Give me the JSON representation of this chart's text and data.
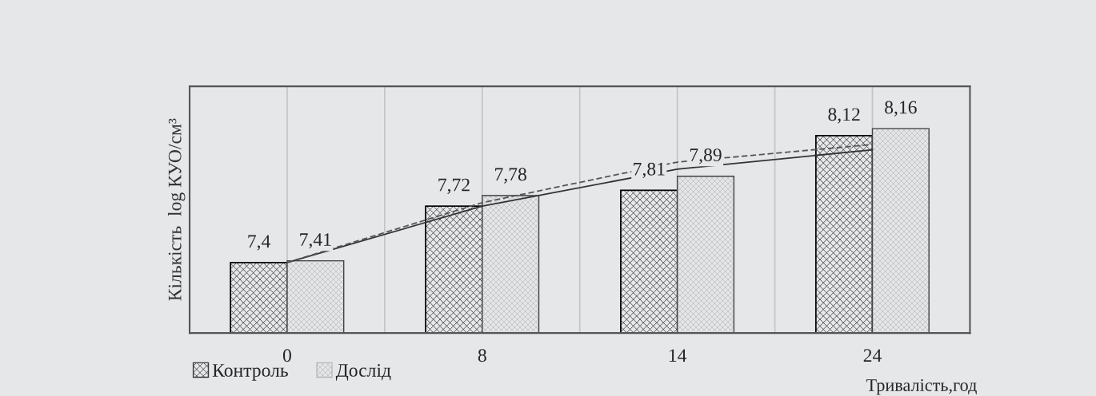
{
  "chart_data": {
    "type": "bar",
    "categories": [
      "0",
      "8",
      "14",
      "24"
    ],
    "series": [
      {
        "name": "Контроль",
        "color": "#3a3a3a",
        "values": [
          7.4,
          7.72,
          7.81,
          8.12
        ],
        "value_labels": [
          "7,4",
          "7,72",
          "7,81",
          "8,12"
        ]
      },
      {
        "name": "Дослід",
        "color": "#b8b8b8",
        "values": [
          7.41,
          7.78,
          7.89,
          8.16
        ],
        "value_labels": [
          "7,41",
          "7,78",
          "7,89",
          "8,16"
        ]
      },
      {
        "type": "line",
        "color": "#333333",
        "line_style": "solid",
        "values": [
          7.4,
          7.72,
          7.93,
          8.04
        ]
      },
      {
        "type": "line",
        "color": "#555555",
        "line_style": "dashed",
        "values": [
          7.4,
          7.74,
          7.97,
          8.07
        ]
      }
    ],
    "xlabel": "Тривалість,год",
    "ylabel": "Кількість  log КУО/см³",
    "ylim": [
      7.0,
      8.4
    ],
    "tick_labels": "x",
    "grid": "x",
    "legend": "bottom left"
  }
}
